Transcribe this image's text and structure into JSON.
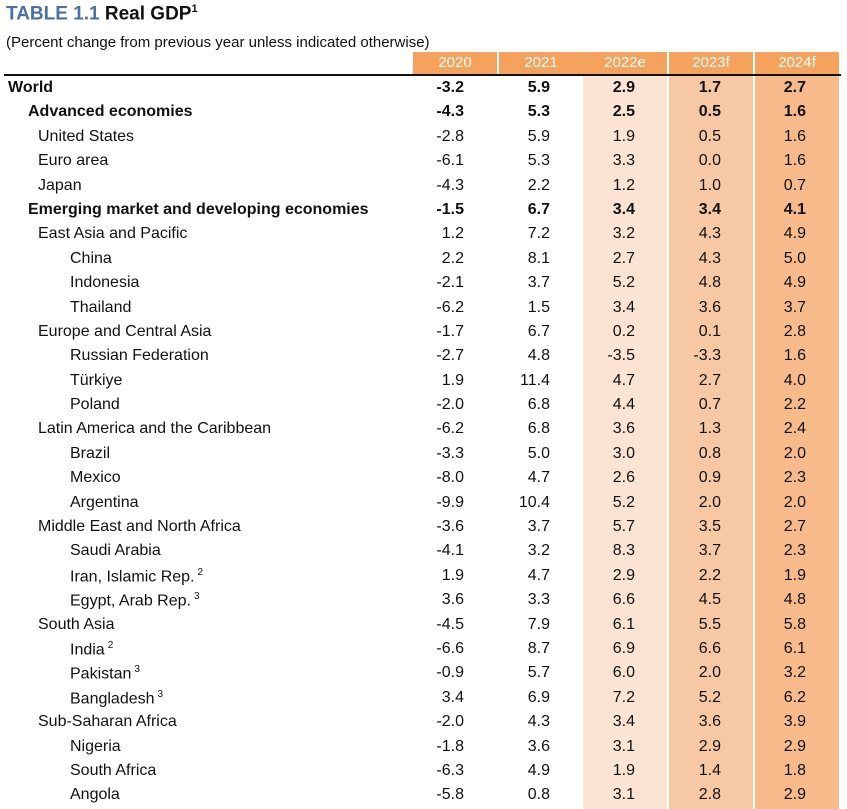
{
  "title": {
    "number": "TABLE 1.1",
    "name": "Real GDP",
    "footnote": "1"
  },
  "subtitle": "(Percent change from previous year unless indicated otherwise)",
  "columns": [
    "2020",
    "2021",
    "2022e",
    "2023f",
    "2024f"
  ],
  "colors": {
    "header": "#f5a35c",
    "col_2022e": "#fbe4d3",
    "col_2023f": "#f7c8a4",
    "col_2024f": "#f6ba8b",
    "title_number": "#4a6fa5"
  },
  "rows": [
    {
      "label": "World",
      "note": "",
      "level": 0,
      "bold": true,
      "values": [
        "-3.2",
        "5.9",
        "2.9",
        "1.7",
        "2.7"
      ]
    },
    {
      "label": "Advanced economies",
      "note": "",
      "level": 1,
      "bold": true,
      "values": [
        "-4.3",
        "5.3",
        "2.5",
        "0.5",
        "1.6"
      ]
    },
    {
      "label": "United States",
      "note": "",
      "level": 2,
      "bold": false,
      "values": [
        "-2.8",
        "5.9",
        "1.9",
        "0.5",
        "1.6"
      ]
    },
    {
      "label": "Euro area",
      "note": "",
      "level": 2,
      "bold": false,
      "values": [
        "-6.1",
        "5.3",
        "3.3",
        "0.0",
        "1.6"
      ]
    },
    {
      "label": "Japan",
      "note": "",
      "level": 2,
      "bold": false,
      "values": [
        "-4.3",
        "2.2",
        "1.2",
        "1.0",
        "0.7"
      ]
    },
    {
      "label": "Emerging market and developing economies",
      "note": "",
      "level": 1,
      "bold": true,
      "values": [
        "-1.5",
        "6.7",
        "3.4",
        "3.4",
        "4.1"
      ]
    },
    {
      "label": "East Asia and Pacific",
      "note": "",
      "level": 2,
      "bold": false,
      "values": [
        "1.2",
        "7.2",
        "3.2",
        "4.3",
        "4.9"
      ]
    },
    {
      "label": "China",
      "note": "",
      "level": 3,
      "bold": false,
      "values": [
        "2.2",
        "8.1",
        "2.7",
        "4.3",
        "5.0"
      ]
    },
    {
      "label": "Indonesia",
      "note": "",
      "level": 3,
      "bold": false,
      "values": [
        "-2.1",
        "3.7",
        "5.2",
        "4.8",
        "4.9"
      ]
    },
    {
      "label": "Thailand",
      "note": "",
      "level": 3,
      "bold": false,
      "values": [
        "-6.2",
        "1.5",
        "3.4",
        "3.6",
        "3.7"
      ]
    },
    {
      "label": "Europe and Central Asia",
      "note": "",
      "level": 2,
      "bold": false,
      "values": [
        "-1.7",
        "6.7",
        "0.2",
        "0.1",
        "2.8"
      ]
    },
    {
      "label": "Russian Federation",
      "note": "",
      "level": 3,
      "bold": false,
      "values": [
        "-2.7",
        "4.8",
        "-3.5",
        "-3.3",
        "1.6"
      ]
    },
    {
      "label": "Türkiye",
      "note": "",
      "level": 3,
      "bold": false,
      "values": [
        "1.9",
        "11.4",
        "4.7",
        "2.7",
        "4.0"
      ]
    },
    {
      "label": "Poland",
      "note": "",
      "level": 3,
      "bold": false,
      "values": [
        "-2.0",
        "6.8",
        "4.4",
        "0.7",
        "2.2"
      ]
    },
    {
      "label": "Latin America and the Caribbean",
      "note": "",
      "level": 2,
      "bold": false,
      "values": [
        "-6.2",
        "6.8",
        "3.6",
        "1.3",
        "2.4"
      ]
    },
    {
      "label": "Brazil",
      "note": "",
      "level": 3,
      "bold": false,
      "values": [
        "-3.3",
        "5.0",
        "3.0",
        "0.8",
        "2.0"
      ]
    },
    {
      "label": "Mexico",
      "note": "",
      "level": 3,
      "bold": false,
      "values": [
        "-8.0",
        "4.7",
        "2.6",
        "0.9",
        "2.3"
      ]
    },
    {
      "label": "Argentina",
      "note": "",
      "level": 3,
      "bold": false,
      "values": [
        "-9.9",
        "10.4",
        "5.2",
        "2.0",
        "2.0"
      ]
    },
    {
      "label": "Middle East and North Africa",
      "note": "",
      "level": 2,
      "bold": false,
      "values": [
        "-3.6",
        "3.7",
        "5.7",
        "3.5",
        "2.7"
      ]
    },
    {
      "label": "Saudi Arabia",
      "note": "",
      "level": 3,
      "bold": false,
      "values": [
        "-4.1",
        "3.2",
        "8.3",
        "3.7",
        "2.3"
      ]
    },
    {
      "label": "Iran, Islamic Rep.",
      "note": "2",
      "level": 3,
      "bold": false,
      "values": [
        "1.9",
        "4.7",
        "2.9",
        "2.2",
        "1.9"
      ]
    },
    {
      "label": "Egypt, Arab Rep.",
      "note": "3",
      "level": 3,
      "bold": false,
      "values": [
        "3.6",
        "3.3",
        "6.6",
        "4.5",
        "4.8"
      ]
    },
    {
      "label": "South Asia",
      "note": "",
      "level": 2,
      "bold": false,
      "values": [
        "-4.5",
        "7.9",
        "6.1",
        "5.5",
        "5.8"
      ]
    },
    {
      "label": "India",
      "note": "2",
      "level": 3,
      "bold": false,
      "values": [
        "-6.6",
        "8.7",
        "6.9",
        "6.6",
        "6.1"
      ]
    },
    {
      "label": "Pakistan",
      "note": "3",
      "level": 3,
      "bold": false,
      "values": [
        "-0.9",
        "5.7",
        "6.0",
        "2.0",
        "3.2"
      ]
    },
    {
      "label": "Bangladesh",
      "note": "3",
      "level": 3,
      "bold": false,
      "values": [
        "3.4",
        "6.9",
        "7.2",
        "5.2",
        "6.2"
      ]
    },
    {
      "label": "Sub-Saharan Africa",
      "note": "",
      "level": 2,
      "bold": false,
      "values": [
        "-2.0",
        "4.3",
        "3.4",
        "3.6",
        "3.9"
      ]
    },
    {
      "label": "Nigeria",
      "note": "",
      "level": 3,
      "bold": false,
      "values": [
        "-1.8",
        "3.6",
        "3.1",
        "2.9",
        "2.9"
      ]
    },
    {
      "label": "South Africa",
      "note": "",
      "level": 3,
      "bold": false,
      "values": [
        "-6.3",
        "4.9",
        "1.9",
        "1.4",
        "1.8"
      ]
    },
    {
      "label": "Angola",
      "note": "",
      "level": 3,
      "bold": false,
      "values": [
        "-5.8",
        "0.8",
        "3.1",
        "2.8",
        "2.9"
      ]
    }
  ]
}
